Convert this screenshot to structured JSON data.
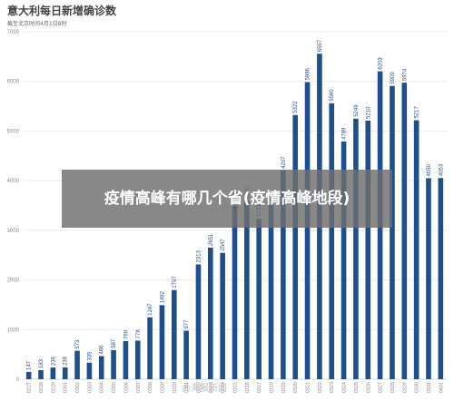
{
  "chart_data": {
    "type": "bar",
    "title": "意大利每日新增确诊数",
    "subtitle": "截至北京时间4月1日8时",
    "color": "#1f4e8c",
    "categories": [
      "0227",
      "0228",
      "0229",
      "0301",
      "0302",
      "0303",
      "0304",
      "0305",
      "0306",
      "0307",
      "0308",
      "0309",
      "0310",
      "0311",
      "0312",
      "0313",
      "0314",
      "0315",
      "0316",
      "0317",
      "0318",
      "0319",
      "0320",
      "0321",
      "0322",
      "0323",
      "0324",
      "0325",
      "0326",
      "0327",
      "0328",
      "0329",
      "0330",
      "0331",
      "0401"
    ],
    "values": [
      147,
      183,
      236,
      239,
      573,
      335,
      466,
      587,
      769,
      778,
      1247,
      1492,
      1797,
      977,
      2313,
      2651,
      2547,
      3497,
      3590,
      3233,
      3526,
      4207,
      5322,
      5986,
      6557,
      5560,
      4789,
      5249,
      5210,
      6203,
      5909,
      5974,
      5217,
      4050,
      4053
    ],
    "value_labels": [
      "147",
      "183",
      "236",
      "239",
      "573",
      "335",
      "466",
      "587",
      "769",
      "778",
      "1247",
      "1492",
      "1797",
      "977",
      "2313",
      "2651",
      "2547",
      "3497",
      "3590",
      "3233",
      "3526",
      "4207",
      "5322",
      "5986",
      "6557",
      "5560",
      "4789",
      "5249",
      "5210",
      "6203",
      "5909",
      "5974",
      "5217",
      "4050",
      "4053"
    ],
    "yticks": [
      0,
      1000,
      2000,
      3000,
      4000,
      5000,
      6000,
      7000
    ],
    "ylim": [
      0,
      7000
    ],
    "grid": true,
    "legend": "none"
  },
  "overlay": {
    "text": "疫情高峰有哪几个省(疫情高峰地段)"
  },
  "watermark": "@海报新闻"
}
